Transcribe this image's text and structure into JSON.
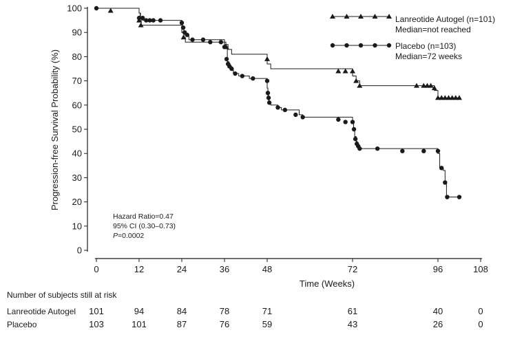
{
  "chart_data": {
    "type": "line",
    "subtype": "kaplan-meier",
    "xlabel": "Time (Weeks)",
    "ylabel": "Progression-free Survival Probability (%)",
    "xlim": [
      0,
      108
    ],
    "ylim": [
      0,
      100
    ],
    "x_ticks": [
      0,
      12,
      24,
      36,
      48,
      72,
      96,
      108
    ],
    "y_ticks": [
      0,
      10,
      20,
      30,
      40,
      50,
      60,
      70,
      80,
      90,
      100
    ],
    "grid": false,
    "legend_position": "top-right",
    "series": [
      {
        "name": "Lanreotide Autogel (n=101)",
        "median": "Median=not reached",
        "marker": "triangle",
        "steps": [
          [
            0,
            100
          ],
          [
            12,
            98
          ],
          [
            12.3,
            96
          ],
          [
            12.6,
            93
          ],
          [
            24,
            90
          ],
          [
            24.6,
            88
          ],
          [
            25,
            86
          ],
          [
            36,
            85
          ],
          [
            37,
            83
          ],
          [
            38,
            81
          ],
          [
            48,
            77
          ],
          [
            49,
            75
          ],
          [
            72,
            72
          ],
          [
            73,
            70
          ],
          [
            74,
            68
          ],
          [
            95,
            66
          ],
          [
            96,
            63
          ],
          [
            102,
            63
          ]
        ],
        "censored": [
          [
            4,
            99
          ],
          [
            12,
            95
          ],
          [
            12.5,
            93
          ],
          [
            24.5,
            88
          ],
          [
            36.5,
            84
          ],
          [
            48,
            79
          ],
          [
            68,
            74
          ],
          [
            70,
            74
          ],
          [
            72,
            74
          ],
          [
            73,
            70
          ],
          [
            74,
            68
          ],
          [
            90,
            68
          ],
          [
            92,
            68
          ],
          [
            93,
            68
          ],
          [
            94,
            68
          ],
          [
            95,
            67
          ],
          [
            96,
            63
          ],
          [
            97,
            63
          ],
          [
            98,
            63
          ],
          [
            99,
            63
          ],
          [
            100,
            63
          ],
          [
            101,
            63
          ],
          [
            102,
            63
          ]
        ]
      },
      {
        "name": "Placebo (n=103)",
        "median": "Median=72 weeks",
        "marker": "circle",
        "steps": [
          [
            0,
            100
          ],
          [
            12,
            98
          ],
          [
            12.4,
            96
          ],
          [
            13,
            95
          ],
          [
            24,
            94
          ],
          [
            24.3,
            92
          ],
          [
            24.6,
            90
          ],
          [
            25,
            89
          ],
          [
            26,
            87
          ],
          [
            36,
            86
          ],
          [
            36.4,
            84
          ],
          [
            36.8,
            78
          ],
          [
            37.2,
            77
          ],
          [
            37.6,
            76
          ],
          [
            38,
            75
          ],
          [
            38.5,
            73
          ],
          [
            40,
            72
          ],
          [
            43,
            71
          ],
          [
            48,
            67
          ],
          [
            48.2,
            64
          ],
          [
            48.4,
            62
          ],
          [
            48.6,
            61
          ],
          [
            49,
            60
          ],
          [
            51,
            59
          ],
          [
            52,
            58
          ],
          [
            57,
            56
          ],
          [
            58,
            55
          ],
          [
            72,
            53
          ],
          [
            72.3,
            50
          ],
          [
            72.6,
            47
          ],
          [
            73,
            45
          ],
          [
            73.3,
            43
          ],
          [
            73.6,
            42
          ],
          [
            74,
            42
          ],
          [
            96,
            40
          ],
          [
            96.5,
            34
          ],
          [
            97.5,
            33
          ],
          [
            98,
            28
          ],
          [
            98.4,
            22
          ],
          [
            102,
            22
          ]
        ],
        "censored": [
          [
            0,
            100
          ],
          [
            12,
            96
          ],
          [
            13,
            96
          ],
          [
            14,
            95
          ],
          [
            15,
            95
          ],
          [
            16,
            95
          ],
          [
            18,
            95
          ],
          [
            24,
            94
          ],
          [
            24.4,
            92
          ],
          [
            24.8,
            90
          ],
          [
            25.5,
            89
          ],
          [
            27,
            87
          ],
          [
            30,
            87
          ],
          [
            32,
            86
          ],
          [
            35,
            86
          ],
          [
            36,
            84
          ],
          [
            36.6,
            79
          ],
          [
            37,
            77
          ],
          [
            37.4,
            76
          ],
          [
            38,
            75
          ],
          [
            39,
            73
          ],
          [
            41,
            72
          ],
          [
            44,
            71
          ],
          [
            48,
            70
          ],
          [
            48.2,
            65
          ],
          [
            48.4,
            63
          ],
          [
            48.6,
            61
          ],
          [
            51,
            59
          ],
          [
            53,
            58
          ],
          [
            56,
            56
          ],
          [
            58,
            55
          ],
          [
            68,
            54
          ],
          [
            70,
            53
          ],
          [
            72,
            53
          ],
          [
            72.4,
            50
          ],
          [
            72.8,
            46
          ],
          [
            73.2,
            44
          ],
          [
            73.6,
            43
          ],
          [
            74,
            42
          ],
          [
            79,
            42
          ],
          [
            86,
            41
          ],
          [
            92,
            41
          ],
          [
            96,
            41
          ],
          [
            97,
            34
          ],
          [
            98,
            28
          ],
          [
            98.6,
            22
          ],
          [
            102,
            22
          ]
        ]
      }
    ],
    "annotations": {
      "hazard_ratio": "Hazard Ratio=0.47",
      "ci": "95% CI (0.30–0.73)",
      "p_value_label": "P",
      "p_value_rest": "=0.0002"
    }
  },
  "risk_table": {
    "title": "Number of subjects still at risk",
    "timepoints": [
      0,
      12,
      24,
      36,
      48,
      72,
      96,
      108
    ],
    "rows": [
      {
        "label": "Lanreotide Autogel",
        "values": [
          "101",
          "94",
          "84",
          "78",
          "71",
          "61",
          "40",
          "0"
        ]
      },
      {
        "label": "Placebo",
        "values": [
          "103",
          "101",
          "87",
          "76",
          "59",
          "43",
          "26",
          "0"
        ]
      }
    ]
  },
  "colors": {
    "line": "#1a1a1a",
    "background": "#ffffff"
  }
}
